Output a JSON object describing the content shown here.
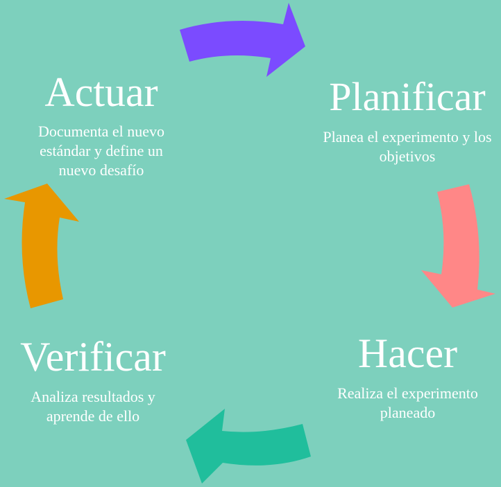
{
  "diagram": {
    "background_color": "#7dd0bd",
    "stages": [
      {
        "id": "planificar",
        "title": "Planificar",
        "description": "Planea el experimento y los objetivos"
      },
      {
        "id": "hacer",
        "title": "Hacer",
        "description": "Realiza el experimento planeado"
      },
      {
        "id": "verificar",
        "title": "Verificar",
        "description": "Analiza resultados y aprende de ello"
      },
      {
        "id": "actuar",
        "title": "Actuar",
        "description": "Documenta el nuevo estándar y define un nuevo desafío"
      }
    ],
    "arrows": [
      {
        "id": "actuar-to-planificar",
        "color": "#7b4bff"
      },
      {
        "id": "planificar-to-hacer",
        "color": "#ff8787"
      },
      {
        "id": "hacer-to-verificar",
        "color": "#20be9c"
      },
      {
        "id": "verificar-to-actuar",
        "color": "#e89700"
      }
    ]
  }
}
